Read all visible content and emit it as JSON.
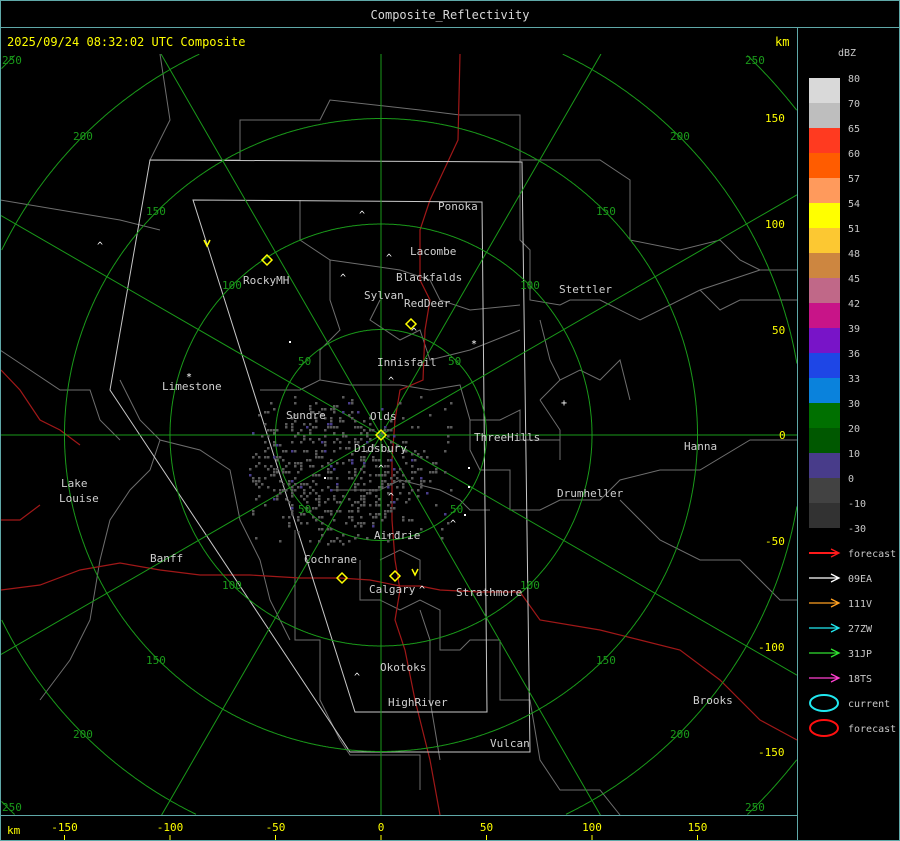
{
  "window": {
    "title": "Composite_Reflectivity"
  },
  "header": {
    "timestamp": "2025/09/24 08:32:02 UTC Composite",
    "unit_top": "km"
  },
  "axes": {
    "x_unit": "km",
    "x_ticks": [
      "-150",
      "-100",
      "-50",
      "0",
      "50",
      "100",
      "150"
    ],
    "y_ticks": [
      "150",
      "100",
      "50",
      "0",
      "-50",
      "-100",
      "-150"
    ],
    "ring_labels": [
      "50",
      "100",
      "150",
      "200",
      "250"
    ]
  },
  "map": {
    "cities": [
      "Ponoka",
      "Lacombe",
      "Blackfalds",
      "Sylvan",
      "RedDeer",
      "Innisfail",
      "Olds",
      "Sundre",
      "Didsbury",
      "ThreeHills",
      "Drumheller",
      "Hanna",
      "Stettler",
      "RockyMH",
      "Limestone",
      "Lake",
      "Louise",
      "Banff",
      "Cochrane",
      "Airdrie",
      "Calgary",
      "Strathmore",
      "Okotoks",
      "HighRiver",
      "Vulcan",
      "Brooks"
    ],
    "colors": {
      "rings": "#1a9a1a",
      "boundaries": "#6e6e6e",
      "highways": "#a01818",
      "coverage": "#c8c8c8",
      "radar_sites": "#ffff00",
      "echo": "#5a5a5a"
    }
  },
  "legend": {
    "unit": "dBZ",
    "levels": [
      "80",
      "70",
      "65",
      "60",
      "57",
      "54",
      "51",
      "48",
      "45",
      "42",
      "39",
      "36",
      "33",
      "30",
      "20",
      "10",
      "0",
      "-10",
      "-30"
    ],
    "colors": [
      "#d9d9d9",
      "#bebebe",
      "#ff3a20",
      "#ff5c00",
      "#ff9a5c",
      "#ffff00",
      "#fcc832",
      "#cd8640",
      "#c06888",
      "#c81488",
      "#7814c8",
      "#1e46e6",
      "#0a82dc",
      "#007000",
      "#005800",
      "#483c8a",
      "#424242",
      "#323232"
    ],
    "tracks": [
      {
        "label": "forecast",
        "color": "#ff1a1a"
      },
      {
        "label": "09EA",
        "color": "#ffffff"
      },
      {
        "label": "111V",
        "color": "#ffa020"
      },
      {
        "label": "27ZW",
        "color": "#20e8f0"
      },
      {
        "label": "31JP",
        "color": "#30e030"
      },
      {
        "label": "18TS",
        "color": "#ff40d0"
      }
    ],
    "cells": [
      {
        "label": "current",
        "color": "#20e8f0"
      },
      {
        "label": "forecast",
        "color": "#ff1010"
      }
    ]
  }
}
